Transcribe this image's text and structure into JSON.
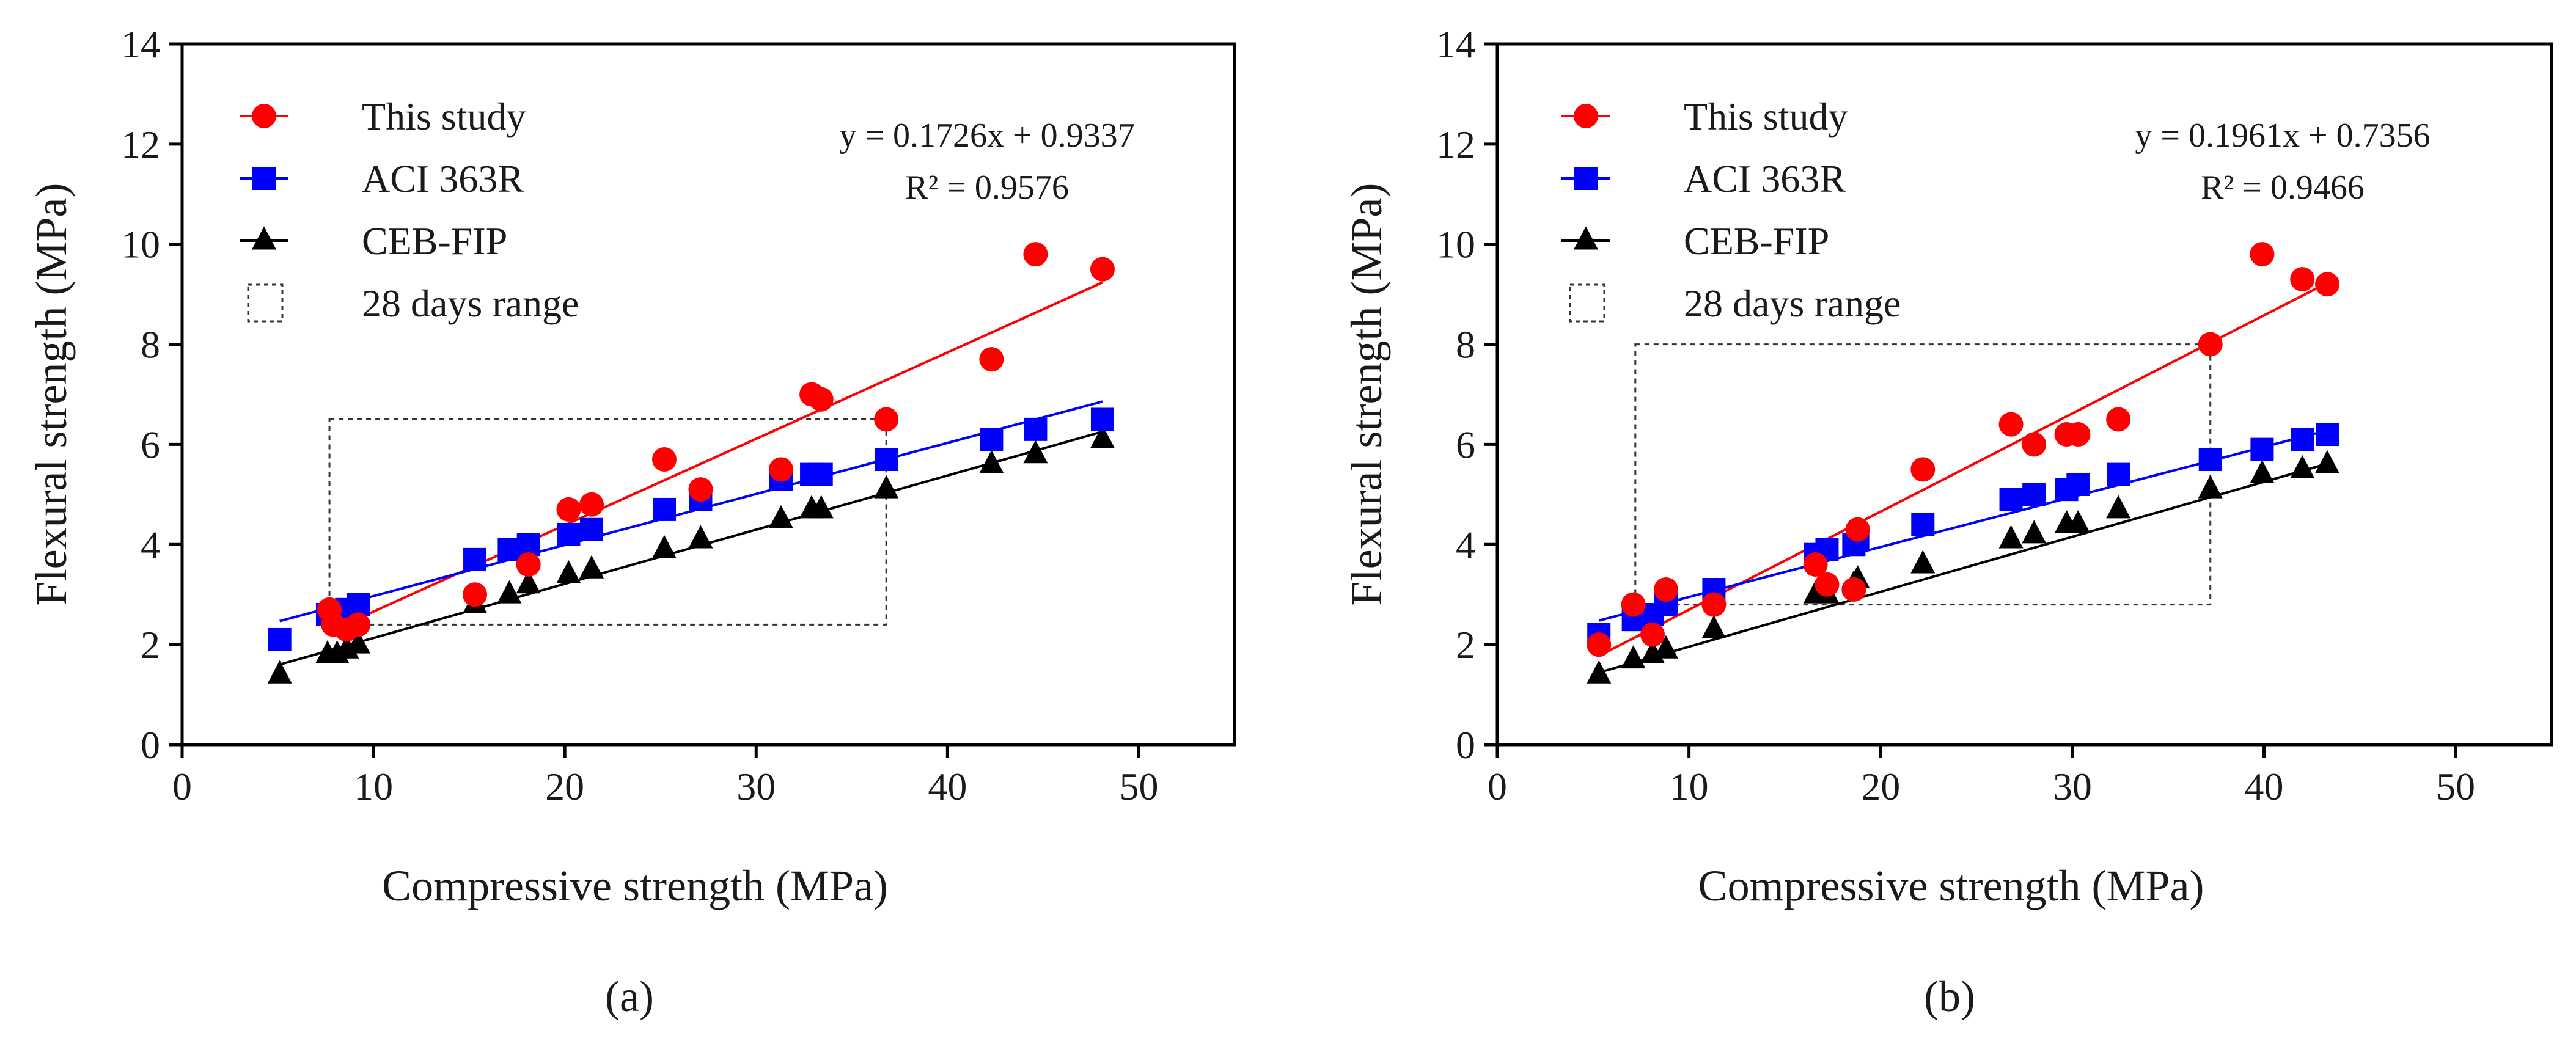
{
  "chart_data": [
    {
      "type": "scatter",
      "caption": "(a)",
      "xlabel": "Compressive strength (MPa)",
      "ylabel": "Flexural strength (MPa)",
      "xlim": [
        0,
        55
      ],
      "ylim": [
        0,
        14
      ],
      "xticks": [
        0,
        10,
        20,
        30,
        40,
        50
      ],
      "yticks": [
        0,
        2,
        4,
        6,
        8,
        10,
        12,
        14
      ],
      "grid": false,
      "legend_position": "top-left",
      "equation": "y = 0.1726x + 0.9337",
      "r_squared": "R² = 0.9576",
      "range_box": {
        "label": "28 days range",
        "x": [
          7.7,
          36.8
        ],
        "y": [
          2.4,
          6.5
        ]
      },
      "series": [
        {
          "name": "This study",
          "marker": "circle",
          "color": "#ff0000",
          "points": [
            [
              7.7,
              2.7
            ],
            [
              7.9,
              2.4
            ],
            [
              8.6,
              2.3
            ],
            [
              9.2,
              2.4
            ],
            [
              15.3,
              3.0
            ],
            [
              18.1,
              3.6
            ],
            [
              20.2,
              4.7
            ],
            [
              21.4,
              4.8
            ],
            [
              25.2,
              5.7
            ],
            [
              27.1,
              5.1
            ],
            [
              31.3,
              5.5
            ],
            [
              32.9,
              7.0
            ],
            [
              33.4,
              6.9
            ],
            [
              36.8,
              6.5
            ],
            [
              42.3,
              7.7
            ],
            [
              44.6,
              9.8
            ],
            [
              48.1,
              9.5
            ]
          ],
          "fit": {
            "slope": 0.1726,
            "intercept": 0.9337,
            "x": [
              7.7,
              48.1
            ]
          }
        },
        {
          "name": "ACI 363R",
          "marker": "square",
          "color": "#0000ff",
          "points": [
            [
              5.1,
              2.1
            ],
            [
              7.6,
              2.6
            ],
            [
              8.1,
              2.6
            ],
            [
              8.6,
              2.7
            ],
            [
              9.2,
              2.8
            ],
            [
              15.3,
              3.7
            ],
            [
              17.1,
              3.9
            ],
            [
              18.1,
              4.0
            ],
            [
              20.2,
              4.2
            ],
            [
              21.4,
              4.3
            ],
            [
              25.2,
              4.7
            ],
            [
              27.1,
              4.9
            ],
            [
              31.3,
              5.3
            ],
            [
              32.9,
              5.4
            ],
            [
              33.4,
              5.4
            ],
            [
              36.8,
              5.7
            ],
            [
              42.3,
              6.1
            ],
            [
              44.6,
              6.3
            ],
            [
              48.1,
              6.5
            ]
          ],
          "fit": {
            "slope": 0.102,
            "intercept": 1.95,
            "x": [
              5.1,
              48.1
            ]
          }
        },
        {
          "name": "CEB-FIP",
          "marker": "triangle",
          "color": "#000000",
          "points": [
            [
              5.1,
              1.4
            ],
            [
              7.6,
              1.8
            ],
            [
              8.1,
              1.8
            ],
            [
              8.6,
              1.9
            ],
            [
              9.2,
              2.0
            ],
            [
              15.3,
              2.8
            ],
            [
              17.1,
              3.0
            ],
            [
              18.1,
              3.2
            ],
            [
              20.2,
              3.4
            ],
            [
              21.4,
              3.5
            ],
            [
              25.2,
              3.9
            ],
            [
              27.1,
              4.1
            ],
            [
              31.3,
              4.5
            ],
            [
              32.9,
              4.7
            ],
            [
              33.4,
              4.7
            ],
            [
              36.8,
              5.1
            ],
            [
              42.3,
              5.6
            ],
            [
              44.6,
              5.8
            ],
            [
              48.1,
              6.1
            ]
          ],
          "fit": {
            "slope": 0.1082,
            "intercept": 1.05,
            "x": [
              5.1,
              48.1
            ]
          }
        }
      ]
    },
    {
      "type": "scatter",
      "caption": "(b)",
      "xlabel": "Compressive strength (MPa)",
      "ylabel": "Flexural strength (MPa)",
      "xlim": [
        0,
        55
      ],
      "ylim": [
        0,
        14
      ],
      "xticks": [
        0,
        10,
        20,
        30,
        40,
        50
      ],
      "yticks": [
        0,
        2,
        4,
        6,
        8,
        10,
        12,
        14
      ],
      "grid": false,
      "legend_position": "top-left",
      "equation": "y = 0.1961x + 0.7356",
      "r_squared": "R² = 0.9466",
      "range_box": {
        "label": "28 days range",
        "x": [
          7.2,
          37.2
        ],
        "y": [
          2.8,
          8.0
        ]
      },
      "series": [
        {
          "name": "This study",
          "marker": "circle",
          "color": "#ff0000",
          "points": [
            [
              5.3,
              2.0
            ],
            [
              7.1,
              2.8
            ],
            [
              8.1,
              2.2
            ],
            [
              8.8,
              3.1
            ],
            [
              11.3,
              2.8
            ],
            [
              16.6,
              3.6
            ],
            [
              17.2,
              3.2
            ],
            [
              18.6,
              3.1
            ],
            [
              18.8,
              4.3
            ],
            [
              22.2,
              5.5
            ],
            [
              26.8,
              6.4
            ],
            [
              28.0,
              6.0
            ],
            [
              29.7,
              6.2
            ],
            [
              30.3,
              6.2
            ],
            [
              32.4,
              6.5
            ],
            [
              37.2,
              8.0
            ],
            [
              39.9,
              9.8
            ],
            [
              42.0,
              9.3
            ],
            [
              43.3,
              9.2
            ]
          ],
          "fit": {
            "slope": 0.1961,
            "intercept": 0.7356,
            "x": [
              5.3,
              43.3
            ]
          }
        },
        {
          "name": "ACI 363R",
          "marker": "square",
          "color": "#0000ff",
          "points": [
            [
              5.3,
              2.2
            ],
            [
              7.1,
              2.5
            ],
            [
              8.1,
              2.6
            ],
            [
              8.8,
              2.8
            ],
            [
              11.3,
              3.1
            ],
            [
              16.6,
              3.8
            ],
            [
              17.2,
              3.9
            ],
            [
              18.6,
              4.0
            ],
            [
              18.8,
              4.1
            ],
            [
              22.2,
              4.4
            ],
            [
              26.8,
              4.9
            ],
            [
              28.0,
              5.0
            ],
            [
              29.7,
              5.1
            ],
            [
              30.3,
              5.2
            ],
            [
              32.4,
              5.4
            ],
            [
              37.2,
              5.7
            ],
            [
              39.9,
              5.9
            ],
            [
              42.0,
              6.1
            ],
            [
              43.3,
              6.2
            ]
          ],
          "fit": {
            "slope": 0.1,
            "intercept": 1.95,
            "x": [
              5.3,
              43.3
            ]
          }
        },
        {
          "name": "CEB-FIP",
          "marker": "triangle",
          "color": "#000000",
          "points": [
            [
              5.3,
              1.4
            ],
            [
              7.1,
              1.7
            ],
            [
              8.1,
              1.8
            ],
            [
              8.8,
              1.9
            ],
            [
              11.3,
              2.3
            ],
            [
              16.6,
              3.0
            ],
            [
              17.2,
              3.0
            ],
            [
              18.6,
              3.2
            ],
            [
              18.8,
              3.3
            ],
            [
              22.2,
              3.6
            ],
            [
              26.8,
              4.1
            ],
            [
              28.0,
              4.2
            ],
            [
              29.7,
              4.4
            ],
            [
              30.3,
              4.4
            ],
            [
              32.4,
              4.7
            ],
            [
              37.2,
              5.1
            ],
            [
              39.9,
              5.4
            ],
            [
              42.0,
              5.5
            ],
            [
              43.3,
              5.6
            ]
          ],
          "fit": {
            "slope": 0.1098,
            "intercept": 0.86,
            "x": [
              5.3,
              43.3
            ]
          }
        }
      ]
    }
  ]
}
